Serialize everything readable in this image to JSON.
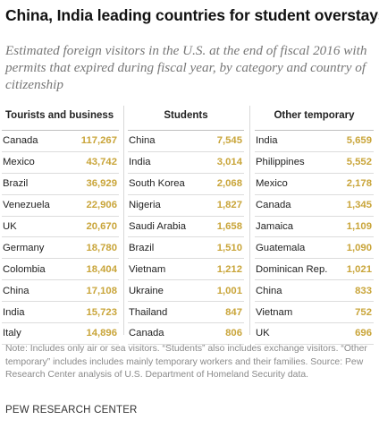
{
  "title": "China, India leading countries for student overstays",
  "subtitle": "Estimated foreign visitors in the U.S. at the end of fiscal 2016 with permits that expired during fiscal year, by category and country of citizenship",
  "colors": {
    "value": "#c9a53a",
    "text": "#222222",
    "note": "#8a8a8a"
  },
  "chart_data": {
    "type": "table",
    "title": "China, India leading countries for student overstays",
    "subtitle": "Estimated foreign visitors in the U.S. at the end of fiscal 2016 with permits that expired during fiscal year, by category and country of citizenship",
    "columns": [
      {
        "header": "Tourists and business",
        "rows": [
          {
            "country": "Canada",
            "value": "117,267"
          },
          {
            "country": "Mexico",
            "value": "43,742"
          },
          {
            "country": "Brazil",
            "value": "36,929"
          },
          {
            "country": "Venezuela",
            "value": "22,906"
          },
          {
            "country": "UK",
            "value": "20,670"
          },
          {
            "country": "Germany",
            "value": "18,780"
          },
          {
            "country": "Colombia",
            "value": "18,404"
          },
          {
            "country": "China",
            "value": "17,108"
          },
          {
            "country": "India",
            "value": "15,723"
          },
          {
            "country": "Italy",
            "value": "14,896"
          }
        ]
      },
      {
        "header": "Students",
        "rows": [
          {
            "country": "China",
            "value": "7,545"
          },
          {
            "country": "India",
            "value": "3,014"
          },
          {
            "country": "South Korea",
            "value": "2,068"
          },
          {
            "country": "Nigeria",
            "value": "1,827"
          },
          {
            "country": "Saudi Arabia",
            "value": "1,658"
          },
          {
            "country": "Brazil",
            "value": "1,510"
          },
          {
            "country": "Vietnam",
            "value": "1,212"
          },
          {
            "country": "Ukraine",
            "value": "1,001"
          },
          {
            "country": "Thailand",
            "value": "847"
          },
          {
            "country": "Canada",
            "value": "806"
          }
        ]
      },
      {
        "header": "Other temporary",
        "rows": [
          {
            "country": "India",
            "value": "5,659"
          },
          {
            "country": "Philippines",
            "value": "5,552"
          },
          {
            "country": "Mexico",
            "value": "2,178"
          },
          {
            "country": "Canada",
            "value": "1,345"
          },
          {
            "country": "Jamaica",
            "value": "1,109"
          },
          {
            "country": "Guatemala",
            "value": "1,090"
          },
          {
            "country": "Dominican Rep.",
            "value": "1,021"
          },
          {
            "country": "China",
            "value": "833"
          },
          {
            "country": "Vietnam",
            "value": "752"
          },
          {
            "country": "UK",
            "value": "696"
          }
        ]
      }
    ]
  },
  "notes": "Note: Includes only air or sea visitors. “Students” also includes exchange visitors. “Other temporary” includes includes mainly temporary workers and their families. Source: Pew Research Center analysis of U.S. Department of Homeland Security data.",
  "source_org": "PEW RESEARCH CENTER"
}
